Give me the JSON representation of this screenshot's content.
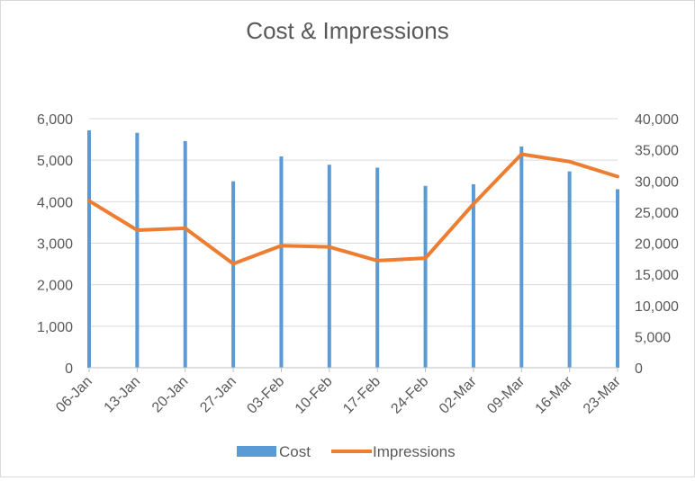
{
  "chart_data": {
    "type": "bar+line",
    "title": "Cost & Impressions",
    "categories": [
      "06-Jan",
      "13-Jan",
      "20-Jan",
      "27-Jan",
      "03-Feb",
      "10-Feb",
      "17-Feb",
      "24-Feb",
      "02-Mar",
      "09-Mar",
      "16-Mar",
      "23-Mar"
    ],
    "series": [
      {
        "name": "Cost",
        "kind": "bar",
        "axis": "left",
        "color": "#5b9bd5",
        "values": [
          5720,
          5660,
          5460,
          4490,
          5090,
          4890,
          4820,
          4380,
          4420,
          5330,
          4730,
          4300
        ]
      },
      {
        "name": "Impressions",
        "kind": "line",
        "axis": "right",
        "color": "#ed7d31",
        "values": [
          26800,
          22100,
          22400,
          16700,
          19600,
          19400,
          17200,
          17600,
          26300,
          34300,
          33100,
          30700
        ]
      }
    ],
    "y_left": {
      "min": 0,
      "max": 6000,
      "ticks": [
        "0",
        "1,000",
        "2,000",
        "3,000",
        "4,000",
        "5,000",
        "6,000"
      ]
    },
    "y_right": {
      "min": 0,
      "max": 40000,
      "ticks": [
        "0",
        "5,000",
        "10,000",
        "15,000",
        "20,000",
        "25,000",
        "30,000",
        "35,000",
        "40,000"
      ]
    },
    "grid": true,
    "legend": "bottom"
  }
}
